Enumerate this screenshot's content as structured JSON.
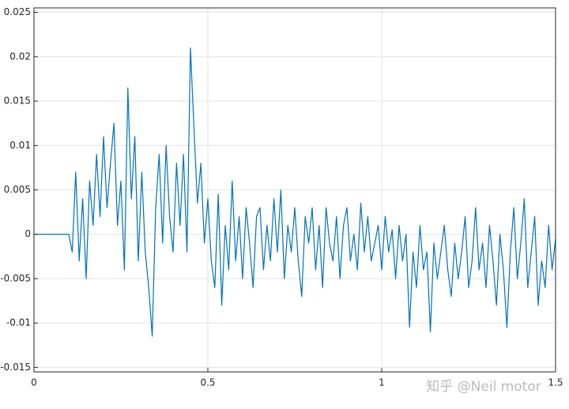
{
  "chart_data": {
    "type": "line",
    "x": [
      0,
      0.1,
      0.11,
      0.12,
      0.13,
      0.14,
      0.15,
      0.16,
      0.17,
      0.18,
      0.19,
      0.2,
      0.21,
      0.22,
      0.23,
      0.24,
      0.25,
      0.26,
      0.27,
      0.28,
      0.29,
      0.3,
      0.31,
      0.32,
      0.33,
      0.34,
      0.35,
      0.36,
      0.37,
      0.38,
      0.39,
      0.4,
      0.41,
      0.42,
      0.43,
      0.44,
      0.45,
      0.46,
      0.47,
      0.48,
      0.49,
      0.5,
      0.51,
      0.52,
      0.53,
      0.54,
      0.55,
      0.56,
      0.57,
      0.58,
      0.59,
      0.6,
      0.61,
      0.62,
      0.63,
      0.64,
      0.65,
      0.66,
      0.67,
      0.68,
      0.69,
      0.7,
      0.71,
      0.72,
      0.73,
      0.74,
      0.75,
      0.76,
      0.77,
      0.78,
      0.79,
      0.8,
      0.81,
      0.82,
      0.83,
      0.84,
      0.85,
      0.86,
      0.87,
      0.88,
      0.89,
      0.9,
      0.91,
      0.92,
      0.93,
      0.94,
      0.95,
      0.96,
      0.97,
      0.98,
      0.99,
      1.0,
      1.01,
      1.02,
      1.03,
      1.04,
      1.05,
      1.06,
      1.07,
      1.08,
      1.09,
      1.1,
      1.11,
      1.12,
      1.13,
      1.14,
      1.15,
      1.16,
      1.17,
      1.18,
      1.19,
      1.2,
      1.21,
      1.22,
      1.23,
      1.24,
      1.25,
      1.26,
      1.27,
      1.28,
      1.29,
      1.3,
      1.31,
      1.32,
      1.33,
      1.34,
      1.35,
      1.36,
      1.37,
      1.38,
      1.39,
      1.4,
      1.41,
      1.42,
      1.43,
      1.44,
      1.45,
      1.46,
      1.47,
      1.48,
      1.49,
      1.5
    ],
    "values": [
      0,
      0,
      -0.002,
      0.007,
      -0.003,
      0.004,
      -0.005,
      0.006,
      0.001,
      0.009,
      0.002,
      0.011,
      0.003,
      0.008,
      0.0125,
      0.001,
      0.006,
      -0.004,
      0.0165,
      0.004,
      0.011,
      -0.003,
      0.007,
      -0.002,
      -0.006,
      -0.0115,
      0.003,
      0.009,
      -0.001,
      0.01,
      0.002,
      -0.002,
      0.008,
      0.001,
      0.009,
      -0.002,
      0.021,
      0.012,
      0.0035,
      0.008,
      -0.001,
      0.004,
      -0.003,
      -0.006,
      0.0045,
      -0.008,
      0.001,
      -0.004,
      0.006,
      -0.003,
      0.002,
      -0.005,
      0.003,
      -0.001,
      -0.006,
      0.002,
      0.003,
      -0.004,
      0.001,
      -0.003,
      0.004,
      -0.002,
      0.005,
      -0.005,
      0.001,
      -0.002,
      0.003,
      -0.003,
      -0.007,
      0.002,
      -0.001,
      0.003,
      -0.004,
      0.001,
      -0.006,
      0.003,
      -0.001,
      -0.003,
      0.002,
      -0.005,
      0.001,
      0.003,
      -0.003,
      0,
      -0.004,
      0.0035,
      -0.002,
      0.002,
      -0.003,
      -0.001,
      0.001,
      -0.004,
      0.002,
      -0.002,
      0.0005,
      -0.005,
      0.001,
      -0.003,
      0,
      -0.0105,
      -0.002,
      -0.006,
      0.001,
      -0.004,
      -0.002,
      -0.011,
      -0.001,
      -0.005,
      -0.002,
      0.001,
      -0.004,
      -0.007,
      -0.001,
      -0.005,
      -0.002,
      0.002,
      -0.006,
      -0.003,
      0.003,
      -0.004,
      -0.001,
      -0.006,
      0.001,
      -0.003,
      -0.008,
      0,
      -0.004,
      -0.0105,
      -0.002,
      0.003,
      -0.005,
      -0.001,
      0.004,
      -0.006,
      -0.002,
      0.002,
      -0.008,
      -0.003,
      -0.006,
      0.001,
      -0.004,
      -0.0005
    ],
    "color": "#0072bd",
    "xlim": [
      0,
      1.5
    ],
    "xticks": [
      0,
      0.5,
      1,
      1.5
    ],
    "ylim": [
      -0.0155,
      0.0255
    ],
    "yticks": [
      -0.015,
      -0.01,
      -0.005,
      0,
      0.005,
      0.01,
      0.015,
      0.02,
      0.025
    ],
    "grid": true,
    "watermark": "知乎 @Neil motor"
  }
}
